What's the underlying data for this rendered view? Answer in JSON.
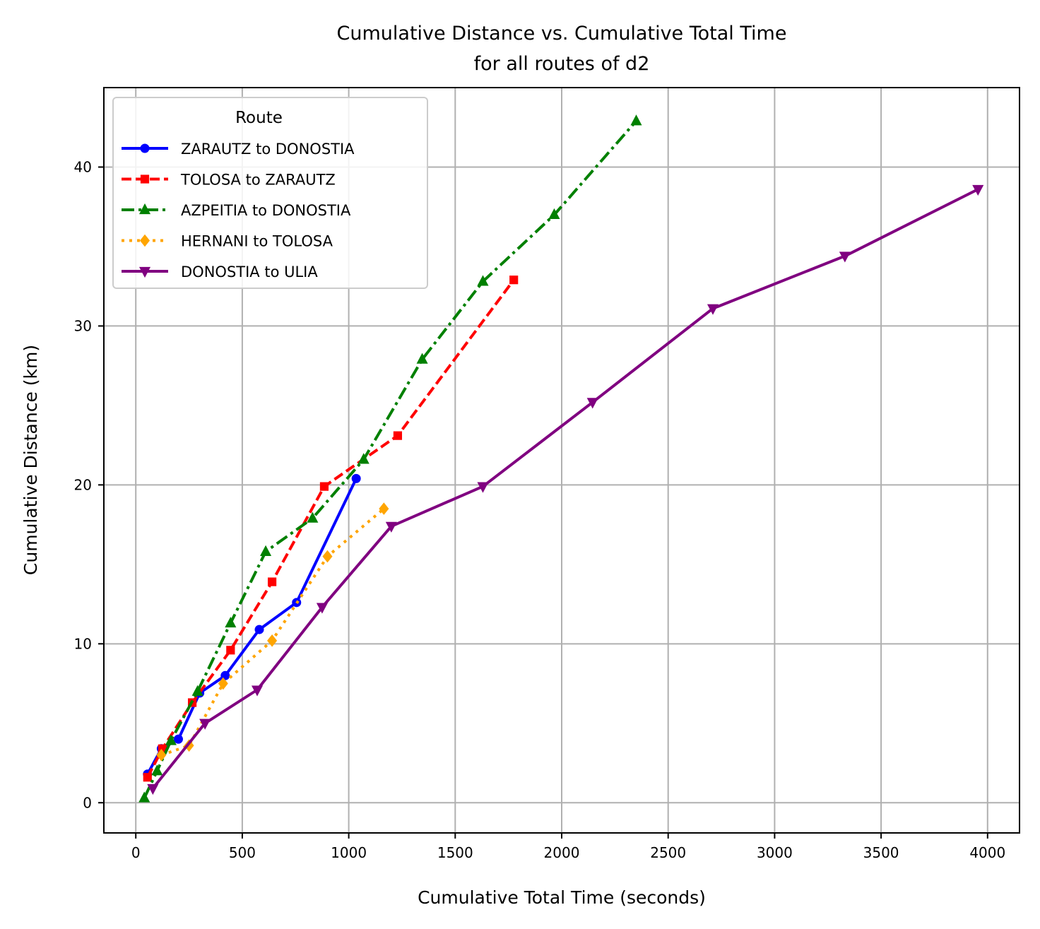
{
  "chart_data": {
    "type": "line",
    "title": "Cumulative Distance vs. Cumulative Total Time",
    "subtitle": "for all routes of d2",
    "xlabel": "Cumulative Total Time (seconds)",
    "ylabel": "Cumulative Distance (km)",
    "xlim": [
      -150,
      4150
    ],
    "ylim": [
      -1.9,
      45.0
    ],
    "xticks": [
      0,
      500,
      1000,
      1500,
      2000,
      2500,
      3000,
      3500,
      4000
    ],
    "yticks": [
      0,
      10,
      20,
      30,
      40
    ],
    "grid": true,
    "legend": {
      "title": "Route",
      "placement": "top-left"
    },
    "series": [
      {
        "name": "ZARAUTZ to DONOSTIA",
        "color": "#0000ff",
        "linestyle": "solid",
        "marker": "circle",
        "x": [
          55,
          120,
          200,
          300,
          420,
          580,
          755,
          1035
        ],
        "y": [
          1.8,
          3.4,
          4.0,
          6.9,
          8.0,
          10.9,
          12.6,
          20.4
        ]
      },
      {
        "name": "TOLOSA to ZARAUTZ",
        "color": "#ff0000",
        "linestyle": "dashed",
        "marker": "square",
        "x": [
          55,
          125,
          265,
          445,
          640,
          885,
          1230,
          1775
        ],
        "y": [
          1.6,
          3.4,
          6.3,
          9.6,
          13.9,
          19.9,
          23.1,
          32.9
        ]
      },
      {
        "name": "AZPEITIA to DONOSTIA",
        "color": "#008000",
        "linestyle": "dashdot",
        "marker": "triangle-up",
        "x": [
          40,
          100,
          165,
          290,
          445,
          610,
          830,
          1070,
          1345,
          1630,
          1965,
          2350
        ],
        "y": [
          0.3,
          2.0,
          3.9,
          7.0,
          11.3,
          15.8,
          17.9,
          21.6,
          27.9,
          32.8,
          37.0,
          42.9
        ]
      },
      {
        "name": "HERNANI to TOLOSA",
        "color": "#ffa500",
        "linestyle": "dotted",
        "marker": "diamond",
        "x": [
          120,
          250,
          410,
          640,
          900,
          1165
        ],
        "y": [
          3.0,
          3.6,
          7.5,
          10.2,
          15.5,
          18.5
        ]
      },
      {
        "name": "DONOSTIA to ULIA",
        "color": "#800080",
        "linestyle": "solid",
        "marker": "triangle-down",
        "x": [
          80,
          325,
          570,
          875,
          1200,
          1630,
          2145,
          2710,
          3330,
          3955
        ],
        "y": [
          0.9,
          5.0,
          7.1,
          12.3,
          17.4,
          19.9,
          25.2,
          31.1,
          34.4,
          38.6
        ]
      }
    ]
  }
}
